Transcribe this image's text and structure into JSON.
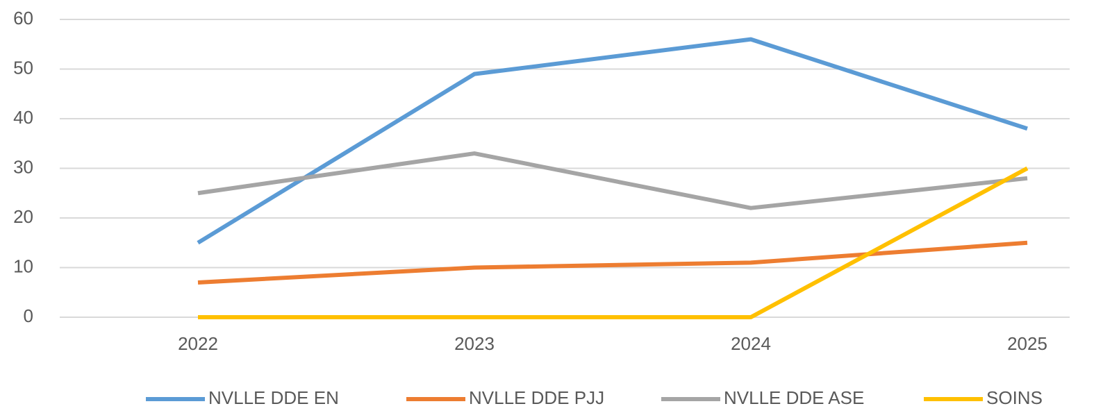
{
  "chart_data": {
    "type": "line",
    "categories": [
      "2022",
      "2023",
      "2024",
      "2025"
    ],
    "series": [
      {
        "name": "NVLLE DDE EN",
        "color": "#5b9bd5",
        "values": [
          15,
          49,
          56,
          38
        ]
      },
      {
        "name": "NVLLE DDE PJJ",
        "color": "#ed7d31",
        "values": [
          7,
          10,
          11,
          15
        ]
      },
      {
        "name": "NVLLE DDE ASE",
        "color": "#a5a5a5",
        "values": [
          25,
          33,
          22,
          28
        ]
      },
      {
        "name": "SOINS",
        "color": "#ffc000",
        "values": [
          0,
          0,
          0,
          30
        ]
      }
    ],
    "ylim": [
      0,
      60
    ],
    "yticks": [
      0,
      10,
      20,
      30,
      40,
      50,
      60
    ],
    "grid": true,
    "legend": "bottom"
  }
}
